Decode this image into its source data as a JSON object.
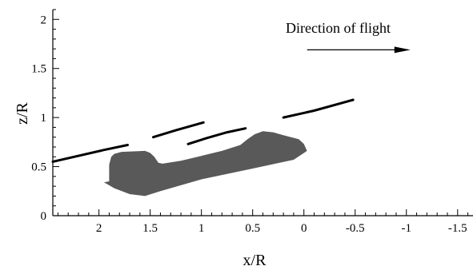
{
  "chart_data": {
    "type": "scatter",
    "title": "",
    "xlabel": "x/R",
    "ylabel": "z/R",
    "xlim": [
      2.45,
      -1.65
    ],
    "ylim": [
      0,
      2.1
    ],
    "x_ticks": [
      2,
      1.5,
      1,
      0.5,
      0,
      -0.5,
      -1,
      -1.5
    ],
    "x_tick_labels": [
      "2",
      "1.5",
      "1",
      "0.5",
      "0",
      "-0.5",
      "-1",
      "-1.5"
    ],
    "y_ticks": [
      0,
      0.5,
      1,
      1.5,
      2
    ],
    "y_tick_labels": [
      "0",
      "0.5",
      "1",
      "1.5",
      "2"
    ],
    "grid": false,
    "annotation": {
      "text": "Direction of flight",
      "arrow_from": [
        -0.5,
        1.69
      ],
      "arrow_to": [
        -1.0,
        1.69
      ]
    },
    "wake_streaks": [
      {
        "points": [
          [
            2.45,
            0.55
          ],
          [
            1.95,
            0.67
          ],
          [
            1.72,
            0.72
          ]
        ]
      },
      {
        "points": [
          [
            1.47,
            0.8
          ],
          [
            1.25,
            0.87
          ],
          [
            0.98,
            0.95
          ]
        ]
      },
      {
        "points": [
          [
            1.13,
            0.73
          ],
          [
            0.95,
            0.79
          ],
          [
            0.75,
            0.85
          ],
          [
            0.57,
            0.89
          ]
        ]
      },
      {
        "points": [
          [
            0.2,
            1.0
          ],
          [
            -0.1,
            1.07
          ],
          [
            -0.48,
            1.18
          ]
        ]
      }
    ],
    "dark_region": {
      "points": [
        [
          1.95,
          0.34
        ],
        [
          1.9,
          0.35
        ],
        [
          1.9,
          0.52
        ],
        [
          1.88,
          0.6
        ],
        [
          1.85,
          0.63
        ],
        [
          1.78,
          0.65
        ],
        [
          1.55,
          0.66
        ],
        [
          1.5,
          0.64
        ],
        [
          1.46,
          0.6
        ],
        [
          1.42,
          0.54
        ],
        [
          1.38,
          0.53
        ],
        [
          1.2,
          0.56
        ],
        [
          1.0,
          0.61
        ],
        [
          0.8,
          0.66
        ],
        [
          0.62,
          0.72
        ],
        [
          0.55,
          0.78
        ],
        [
          0.48,
          0.83
        ],
        [
          0.4,
          0.86
        ],
        [
          0.3,
          0.85
        ],
        [
          0.2,
          0.82
        ],
        [
          0.05,
          0.78
        ],
        [
          0.0,
          0.73
        ],
        [
          -0.03,
          0.66
        ],
        [
          0.1,
          0.57
        ],
        [
          0.5,
          0.48
        ],
        [
          1.0,
          0.37
        ],
        [
          1.4,
          0.25
        ],
        [
          1.55,
          0.2
        ],
        [
          1.7,
          0.22
        ],
        [
          1.85,
          0.28
        ]
      ]
    }
  }
}
